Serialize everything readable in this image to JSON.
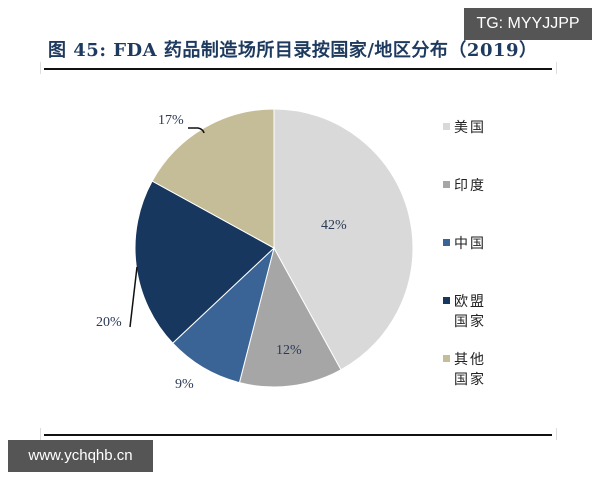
{
  "title": "图 45:  FDA 药品制造场所目录按国家/地区分布（2019）",
  "watermarks": {
    "top_right": "TG: MYYJJPP",
    "bottom_left": "www.ychqhb.cn"
  },
  "chart_data": {
    "type": "pie",
    "title": "图 45: FDA 药品制造场所目录按国家/地区分布（2019）",
    "categories": [
      "美国",
      "印度",
      "中国",
      "欧盟国家",
      "其他国家"
    ],
    "values": [
      42,
      12,
      9,
      20,
      17
    ],
    "unit": "%",
    "labels": [
      "42%",
      "12%",
      "9%",
      "20%",
      "17%"
    ],
    "colors": [
      "#d9d9d9",
      "#a6a6a6",
      "#3a6496",
      "#17375e",
      "#c4bd97"
    ],
    "start_angle": "12 o'clock, clockwise",
    "legend_position": "right"
  },
  "legend": [
    {
      "label": "美国",
      "color": "#d9d9d9"
    },
    {
      "label": "印度",
      "color": "#a6a6a6"
    },
    {
      "label": "中国",
      "color": "#3a6496"
    },
    {
      "label": "欧盟国家",
      "color": "#17375e"
    },
    {
      "label": "其他国家",
      "color": "#c4bd97"
    }
  ]
}
